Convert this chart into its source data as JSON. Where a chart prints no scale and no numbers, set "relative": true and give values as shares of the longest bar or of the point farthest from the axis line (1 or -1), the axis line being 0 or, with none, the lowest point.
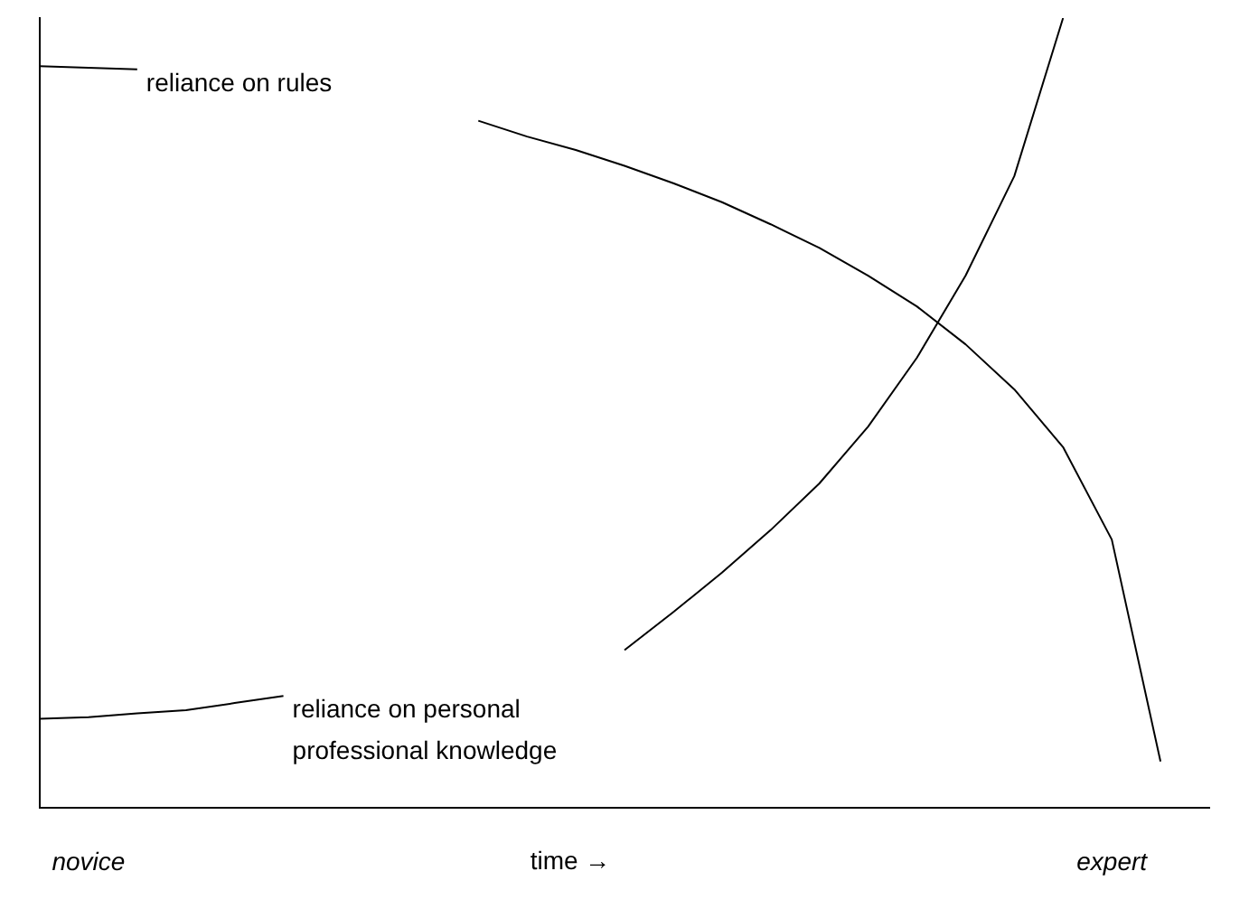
{
  "chart_data": {
    "type": "line",
    "relative": true,
    "xlabel": "time →",
    "categories": [
      null,
      "novice",
      null,
      null,
      null,
      null,
      null,
      null,
      null,
      null,
      null,
      null,
      null,
      null,
      null,
      null,
      null,
      null,
      null,
      null,
      null,
      null,
      "expert",
      null,
      null
    ],
    "series": [
      {
        "name": "reliance on rules",
        "color": "#000000",
        "values": [
          0.939,
          0.937,
          0.935,
          null,
          null,
          null,
          null,
          null,
          null,
          0.87,
          0.85,
          0.833,
          0.813,
          0.791,
          0.767,
          0.739,
          0.709,
          0.674,
          0.635,
          0.587,
          0.53,
          0.457,
          0.34,
          0.059,
          null
        ]
      },
      {
        "name": "reliance on personal professional knowledge",
        "color": "#000000",
        "values": [
          0.113,
          0.115,
          0.12,
          0.124,
          0.133,
          0.142,
          null,
          null,
          null,
          null,
          null,
          null,
          0.2,
          0.248,
          0.298,
          0.352,
          0.411,
          0.483,
          0.57,
          0.674,
          0.8,
          1.0,
          null,
          null,
          null
        ]
      }
    ],
    "grid": false,
    "legend": false,
    "marker": "none",
    "line_style": "solid"
  }
}
